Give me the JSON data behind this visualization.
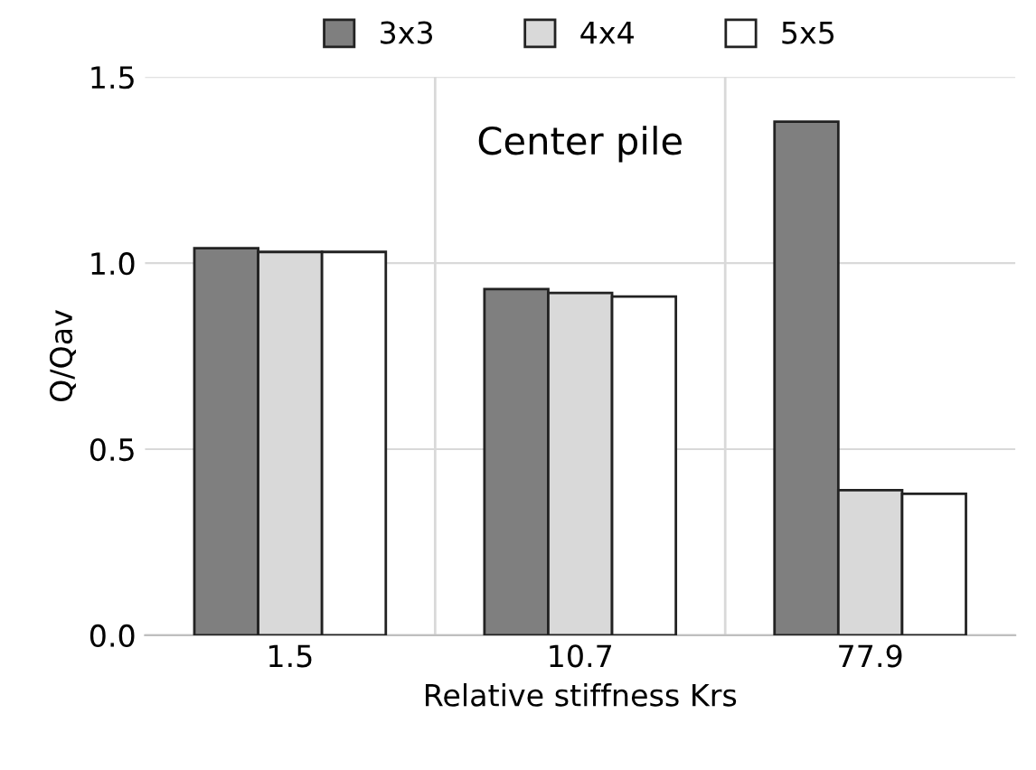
{
  "chart_data": {
    "type": "bar",
    "xlabel": "Relative stiffness Krs",
    "ylabel": "Q/Qav",
    "categories": [
      "1.5",
      "10.7",
      "77.9"
    ],
    "series": [
      {
        "name": "3x3",
        "color": "#7f7f7f",
        "values": [
          1.04,
          0.93,
          1.38
        ]
      },
      {
        "name": "4x4",
        "color": "#d9d9d9",
        "values": [
          1.03,
          0.92,
          0.39
        ]
      },
      {
        "name": "5x5",
        "color": "#ffffff",
        "values": [
          1.03,
          0.91,
          0.38
        ]
      }
    ],
    "ylim": [
      0,
      1.5
    ],
    "yticks": [
      {
        "value": 0,
        "label": "0.0"
      },
      {
        "value": 0.5,
        "label": "0.5"
      },
      {
        "value": 1,
        "label": "1.0"
      },
      {
        "value": 1.5,
        "label": "1.5"
      }
    ],
    "annotations": [
      "Center pile"
    ],
    "grid": true,
    "legend": "top"
  }
}
